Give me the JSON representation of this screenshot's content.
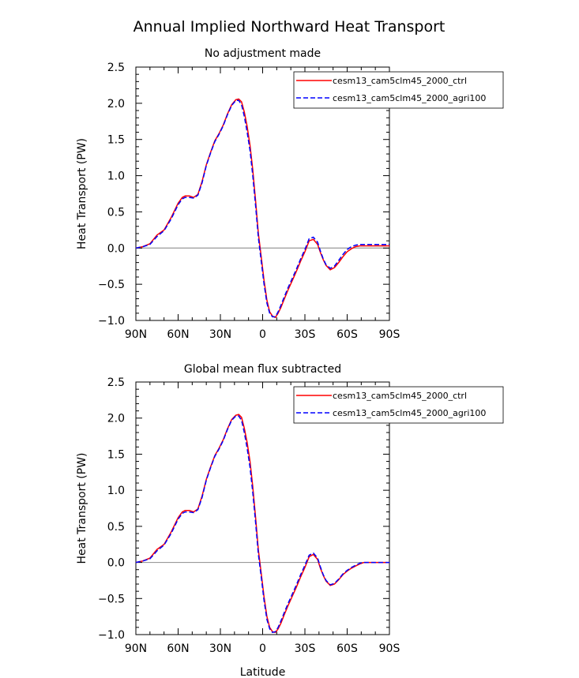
{
  "figure_title": "Annual Implied Northward Heat Transport",
  "colors": {
    "ctrl": "#ff0000",
    "agri": "#0000ff",
    "zero_line": "#999999"
  },
  "chart_data": [
    {
      "type": "line",
      "title": "No adjustment made",
      "xlabel": "",
      "ylabel": "Heat Transport (PW)",
      "x_ticks": [
        90,
        60,
        30,
        0,
        -30,
        -60,
        -90
      ],
      "x_tick_labels": [
        "90N",
        "60N",
        "30N",
        "0",
        "30S",
        "60S",
        "90S"
      ],
      "y_ticks": [
        -1.0,
        -0.5,
        0.0,
        0.5,
        1.0,
        1.5,
        2.0,
        2.5
      ],
      "y_tick_labels": [
        "−1.0",
        "−0.5",
        "0.0",
        "0.5",
        "1.0",
        "1.5",
        "2.0",
        "2.5"
      ],
      "xlim": [
        90,
        -90
      ],
      "ylim": [
        -1.0,
        2.5
      ],
      "legend_position": "top-right",
      "series": [
        {
          "name": "cesm13_cam5clm45_2000_ctrl",
          "color": "#ff0000",
          "dash": "solid",
          "x": [
            90,
            85,
            80,
            75,
            70,
            65,
            60,
            57,
            55,
            52,
            49,
            46,
            43,
            40,
            37,
            34,
            31,
            28,
            25,
            22,
            19,
            17,
            15,
            13,
            11,
            9,
            7,
            5,
            3,
            1,
            -1,
            -3,
            -5,
            -7,
            -9,
            -11,
            -13,
            -15,
            -18,
            -21,
            -24,
            -27,
            -30,
            -33,
            -36,
            -39,
            -41,
            -43,
            -45,
            -48,
            -51,
            -54,
            -57,
            -60,
            -63,
            -66,
            -69,
            -72,
            -75,
            -78,
            -81,
            -84,
            -87,
            -90
          ],
          "y": [
            0.0,
            0.02,
            0.06,
            0.18,
            0.25,
            0.42,
            0.62,
            0.7,
            0.72,
            0.72,
            0.7,
            0.74,
            0.92,
            1.15,
            1.32,
            1.48,
            1.58,
            1.7,
            1.85,
            1.98,
            2.05,
            2.06,
            2.02,
            1.88,
            1.68,
            1.42,
            1.08,
            0.65,
            0.2,
            -0.12,
            -0.45,
            -0.72,
            -0.88,
            -0.94,
            -0.96,
            -0.9,
            -0.82,
            -0.72,
            -0.58,
            -0.45,
            -0.32,
            -0.18,
            -0.05,
            0.1,
            0.12,
            0.05,
            -0.06,
            -0.16,
            -0.24,
            -0.3,
            -0.27,
            -0.2,
            -0.12,
            -0.05,
            -0.01,
            0.02,
            0.03,
            0.03,
            0.03,
            0.03,
            0.03,
            0.03,
            0.03,
            0.03
          ]
        },
        {
          "name": "cesm13_cam5clm45_2000_agri100",
          "color": "#0000ff",
          "dash": "dashed",
          "x": [
            90,
            85,
            80,
            75,
            70,
            65,
            60,
            57,
            55,
            52,
            49,
            46,
            43,
            40,
            37,
            34,
            31,
            28,
            25,
            22,
            19,
            17,
            15,
            13,
            11,
            9,
            7,
            5,
            3,
            1,
            -1,
            -3,
            -5,
            -7,
            -9,
            -11,
            -13,
            -15,
            -18,
            -21,
            -24,
            -27,
            -30,
            -33,
            -36,
            -39,
            -41,
            -43,
            -45,
            -48,
            -51,
            -54,
            -57,
            -60,
            -63,
            -66,
            -69,
            -72,
            -75,
            -78,
            -81,
            -84,
            -87,
            -90
          ],
          "y": [
            0.0,
            0.02,
            0.05,
            0.16,
            0.24,
            0.4,
            0.6,
            0.68,
            0.7,
            0.7,
            0.69,
            0.73,
            0.9,
            1.14,
            1.31,
            1.47,
            1.57,
            1.69,
            1.84,
            1.97,
            2.04,
            2.04,
            1.98,
            1.82,
            1.6,
            1.35,
            1.0,
            0.58,
            0.14,
            -0.18,
            -0.5,
            -0.76,
            -0.9,
            -0.95,
            -0.95,
            -0.88,
            -0.79,
            -0.69,
            -0.55,
            -0.42,
            -0.29,
            -0.15,
            -0.02,
            0.13,
            0.15,
            0.08,
            -0.04,
            -0.15,
            -0.23,
            -0.28,
            -0.25,
            -0.17,
            -0.09,
            -0.02,
            0.02,
            0.04,
            0.05,
            0.05,
            0.05,
            0.05,
            0.05,
            0.05,
            0.05,
            0.05
          ]
        }
      ]
    },
    {
      "type": "line",
      "title": "Global mean flux subtracted",
      "xlabel": "Latitude",
      "ylabel": "Heat Transport (PW)",
      "x_ticks": [
        90,
        60,
        30,
        0,
        -30,
        -60,
        -90
      ],
      "x_tick_labels": [
        "90N",
        "60N",
        "30N",
        "0",
        "30S",
        "60S",
        "90S"
      ],
      "y_ticks": [
        -1.0,
        -0.5,
        0.0,
        0.5,
        1.0,
        1.5,
        2.0,
        2.5
      ],
      "y_tick_labels": [
        "−1.0",
        "−0.5",
        "0.0",
        "0.5",
        "1.0",
        "1.5",
        "2.0",
        "2.5"
      ],
      "xlim": [
        90,
        -90
      ],
      "ylim": [
        -1.0,
        2.5
      ],
      "legend_position": "top-right",
      "series": [
        {
          "name": "cesm13_cam5clm45_2000_ctrl",
          "color": "#ff0000",
          "dash": "solid",
          "x": [
            90,
            85,
            80,
            75,
            70,
            65,
            60,
            57,
            55,
            52,
            49,
            46,
            43,
            40,
            37,
            34,
            31,
            28,
            25,
            22,
            19,
            17,
            15,
            13,
            11,
            9,
            7,
            5,
            3,
            1,
            -1,
            -3,
            -5,
            -7,
            -9,
            -11,
            -13,
            -15,
            -18,
            -21,
            -24,
            -27,
            -30,
            -33,
            -36,
            -39,
            -41,
            -43,
            -45,
            -48,
            -51,
            -54,
            -57,
            -60,
            -63,
            -66,
            -69,
            -72,
            -75,
            -78,
            -81,
            -84,
            -87,
            -90
          ],
          "y": [
            0.0,
            0.02,
            0.06,
            0.18,
            0.25,
            0.42,
            0.62,
            0.7,
            0.72,
            0.72,
            0.7,
            0.74,
            0.92,
            1.15,
            1.32,
            1.48,
            1.58,
            1.7,
            1.85,
            1.98,
            2.04,
            2.05,
            2.01,
            1.86,
            1.66,
            1.4,
            1.05,
            0.62,
            0.17,
            -0.15,
            -0.48,
            -0.75,
            -0.9,
            -0.96,
            -0.97,
            -0.92,
            -0.84,
            -0.74,
            -0.6,
            -0.47,
            -0.34,
            -0.2,
            -0.07,
            0.08,
            0.11,
            0.04,
            -0.08,
            -0.18,
            -0.26,
            -0.32,
            -0.3,
            -0.24,
            -0.17,
            -0.12,
            -0.08,
            -0.05,
            -0.02,
            0.0,
            0.0,
            0.0,
            0.0,
            0.0,
            0.0,
            0.0
          ]
        },
        {
          "name": "cesm13_cam5clm45_2000_agri100",
          "color": "#0000ff",
          "dash": "dashed",
          "x": [
            90,
            85,
            80,
            75,
            70,
            65,
            60,
            57,
            55,
            52,
            49,
            46,
            43,
            40,
            37,
            34,
            31,
            28,
            25,
            22,
            19,
            17,
            15,
            13,
            11,
            9,
            7,
            5,
            3,
            1,
            -1,
            -3,
            -5,
            -7,
            -9,
            -11,
            -13,
            -15,
            -18,
            -21,
            -24,
            -27,
            -30,
            -33,
            -36,
            -39,
            -41,
            -43,
            -45,
            -48,
            -51,
            -54,
            -57,
            -60,
            -63,
            -66,
            -69,
            -72,
            -75,
            -78,
            -81,
            -84,
            -87,
            -90
          ],
          "y": [
            0.0,
            0.02,
            0.05,
            0.16,
            0.24,
            0.4,
            0.6,
            0.68,
            0.7,
            0.7,
            0.69,
            0.73,
            0.9,
            1.14,
            1.31,
            1.47,
            1.57,
            1.69,
            1.84,
            1.97,
            2.03,
            2.03,
            1.97,
            1.8,
            1.58,
            1.32,
            0.97,
            0.55,
            0.11,
            -0.2,
            -0.53,
            -0.79,
            -0.92,
            -0.97,
            -0.96,
            -0.9,
            -0.81,
            -0.71,
            -0.57,
            -0.44,
            -0.31,
            -0.17,
            -0.04,
            0.1,
            0.13,
            0.06,
            -0.06,
            -0.17,
            -0.25,
            -0.31,
            -0.29,
            -0.23,
            -0.16,
            -0.11,
            -0.07,
            -0.04,
            -0.01,
            0.0,
            0.0,
            0.0,
            0.0,
            0.0,
            0.0,
            0.0
          ]
        }
      ]
    }
  ]
}
